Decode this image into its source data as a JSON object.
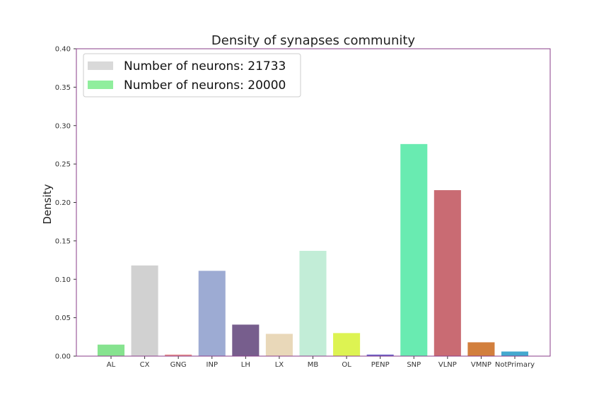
{
  "chart_data": {
    "type": "bar",
    "title": "Density of synapses community",
    "xlabel": "",
    "ylabel": "Density",
    "ylim": [
      0,
      0.4
    ],
    "yticks": [
      "0.00",
      "0.05",
      "0.10",
      "0.15",
      "0.20",
      "0.25",
      "0.30",
      "0.35",
      "0.40"
    ],
    "grid": false,
    "legend_position": "upper-left",
    "legend": [
      {
        "label": "Number of neurons: 21733",
        "color": "#d9d9d9"
      },
      {
        "label": "Number of neurons: 20000",
        "color": "#90ee9d"
      }
    ],
    "categories": [
      "AL",
      "CX",
      "GNG",
      "INP",
      "LH",
      "LX",
      "MB",
      "OL",
      "PENP",
      "SNP",
      "VLNP",
      "VMNP",
      "NotPrimary"
    ],
    "values": [
      0.015,
      0.118,
      0.002,
      0.111,
      0.041,
      0.029,
      0.137,
      0.03,
      0.002,
      0.276,
      0.216,
      0.018,
      0.006
    ],
    "colors": [
      "#86e38f",
      "#d1d1d1",
      "#e88c8c",
      "#9dabd3",
      "#775e8d",
      "#e9d8b9",
      "#c2edd7",
      "#ddf352",
      "#6b5fc8",
      "#69ebb1",
      "#c96b73",
      "#d27f3d",
      "#44a9cf"
    ]
  }
}
